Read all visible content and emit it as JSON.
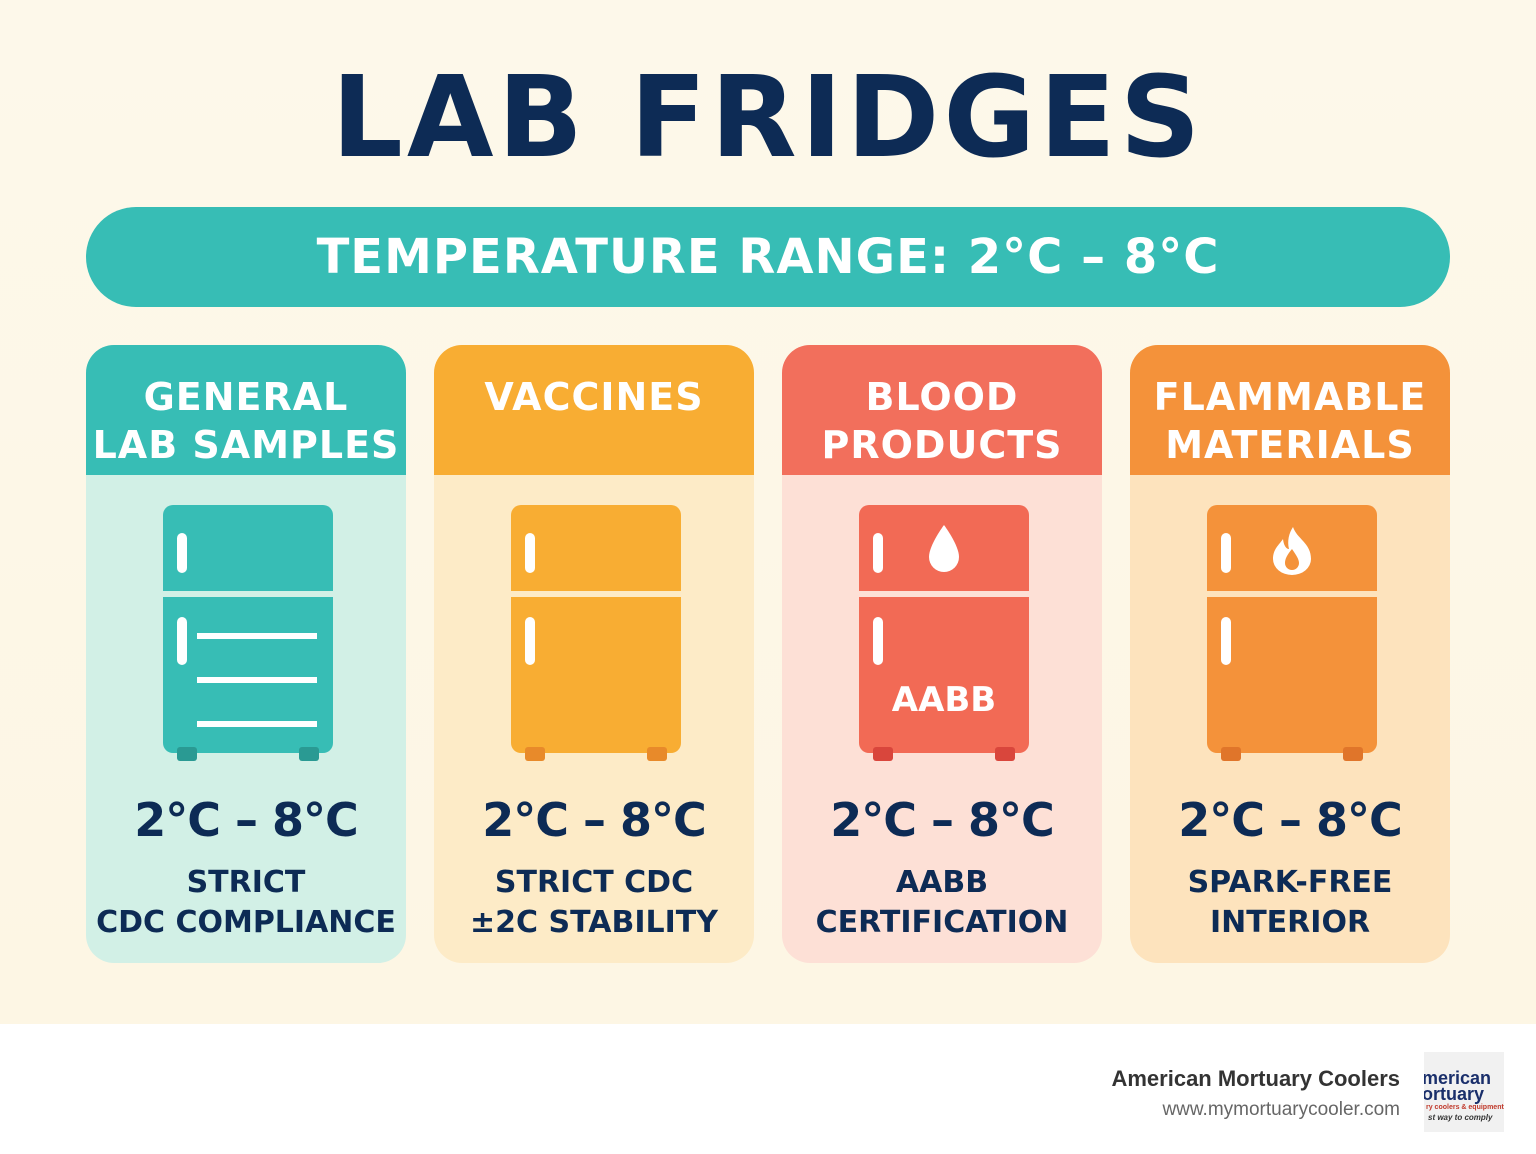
{
  "title": "LAB FRIDGES",
  "banner": "TEMPERATURE RANGE: 2°C – 8°C",
  "cards": [
    {
      "head": [
        "GENERAL",
        "LAB SAMPLES"
      ],
      "temp": "2°C – 8°C",
      "desc": [
        "STRICT",
        "CDC COMPLIANCE"
      ],
      "colors": {
        "head": "#37bdb5",
        "body": "#d2f0e6",
        "fridge": "#37bdb5",
        "feet": "#2a9a93"
      }
    },
    {
      "head": [
        "VACCINES"
      ],
      "temp": "2°C – 8°C",
      "desc": [
        "STRICT CDC",
        "±2C STABILITY"
      ],
      "colors": {
        "head": "#f8ad33",
        "body": "#fdebc7",
        "fridge": "#f8ad33",
        "feet": "#e88a2a"
      }
    },
    {
      "head": [
        "BLOOD",
        "PRODUCTS"
      ],
      "temp": "2°C – 8°C",
      "desc": [
        "AABB",
        "CERTIFICATION"
      ],
      "fridge_label": "AABB",
      "icon": "drop-icon",
      "colors": {
        "head": "#f26f5c",
        "body": "#fde0d6",
        "fridge": "#f26a55",
        "feet": "#d9463c"
      }
    },
    {
      "head": [
        "FLAMMABLE",
        "MATERIALS"
      ],
      "temp": "2°C – 8°C",
      "desc": [
        "SPARK-FREE",
        "INTERIOR"
      ],
      "icon": "flame-icon",
      "colors": {
        "head": "#f4923a",
        "body": "#fde3bd",
        "fridge": "#f4923a",
        "feet": "#e0752a"
      }
    }
  ],
  "footer": {
    "brand": "American Mortuary Coolers",
    "url": "www.mymortuarycooler.com",
    "logo_lines": [
      "merican",
      "ortuary",
      "ry coolers & equipment",
      "st way to comply"
    ]
  }
}
